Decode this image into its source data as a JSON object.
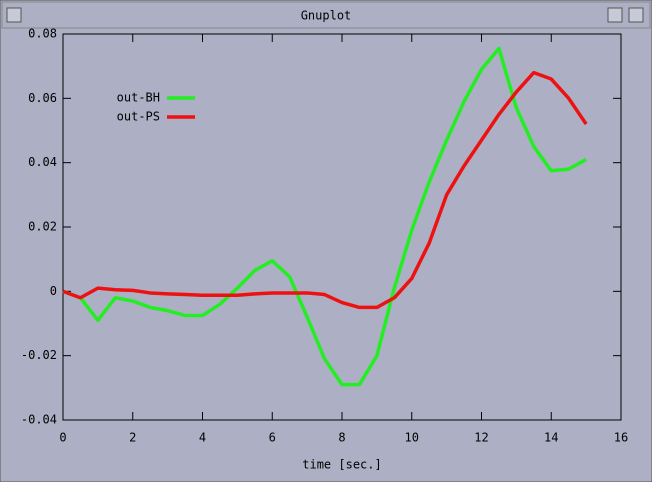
{
  "window": {
    "title": "Gnuplot"
  },
  "chart_data": {
    "type": "line",
    "xlabel": "time [sec.]",
    "x": [
      0,
      0.5,
      1,
      1.5,
      2,
      2.5,
      3,
      3.5,
      4,
      4.5,
      5,
      5.5,
      6,
      6.5,
      7,
      7.5,
      8,
      8.5,
      9,
      9.5,
      10,
      10.5,
      11,
      11.5,
      12,
      12.5,
      13,
      13.5,
      14,
      14.5,
      15
    ],
    "series": [
      {
        "name": "out-BH",
        "color": "#22ee22",
        "values": [
          0,
          -0.002,
          -0.009,
          -0.002,
          -0.003,
          -0.005,
          -0.006,
          -0.0075,
          -0.0075,
          -0.004,
          0.001,
          0.0065,
          0.0095,
          0.0045,
          -0.008,
          -0.021,
          -0.029,
          -0.029,
          -0.02,
          0.001,
          0.019,
          0.034,
          0.047,
          0.059,
          0.069,
          0.0755,
          0.057,
          0.045,
          0.0375,
          0.038,
          0.041
        ]
      },
      {
        "name": "out-PS",
        "color": "#ee1111",
        "values": [
          0,
          -0.002,
          0.001,
          0.0005,
          0.0003,
          -0.0005,
          -0.0008,
          -0.001,
          -0.0012,
          -0.0012,
          -0.0012,
          -0.0008,
          -0.0005,
          -0.0005,
          -0.0005,
          -0.001,
          -0.0035,
          -0.005,
          -0.005,
          -0.002,
          0.004,
          0.015,
          0.03,
          0.039,
          0.047,
          0.055,
          0.062,
          0.068,
          0.066,
          0.06,
          0.052
        ]
      }
    ],
    "xlim": [
      0,
      16
    ],
    "xticks": [
      0,
      2,
      4,
      6,
      8,
      10,
      12,
      14,
      16
    ],
    "ylim": [
      -0.04,
      0.08
    ],
    "yticks": [
      -0.04,
      -0.02,
      0,
      0.02,
      0.04,
      0.06,
      0.08
    ],
    "legend": "upper-left"
  }
}
